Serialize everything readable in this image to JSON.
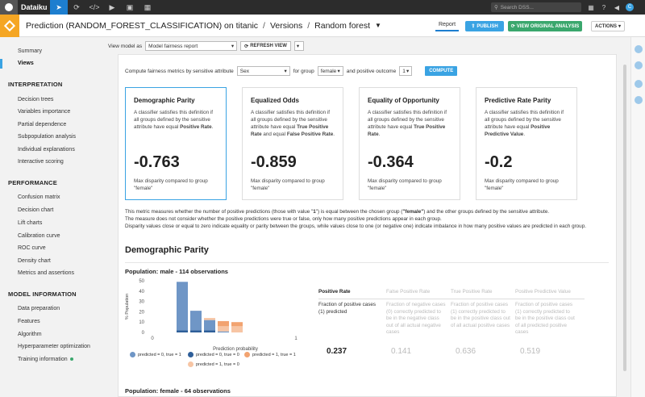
{
  "topbar": {
    "brand": "Dataiku",
    "search_placeholder": "Search DSS...",
    "nav_icons": [
      "flow-icon",
      "jobs-icon",
      "code-icon",
      "run-icon",
      "dashboard-icon",
      "apps-icon"
    ]
  },
  "titlebar": {
    "crumb_1": "Prediction (RANDOM_FOREST_CLASSIFICATION) on titanic",
    "crumb_2": "Versions",
    "crumb_3": "Random forest",
    "tab_report": "Report",
    "publish": "PUBLISH",
    "view_original": "VIEW ORIGINAL ANALYSIS",
    "actions": "ACTIONS"
  },
  "sidebar": {
    "top_items": [
      {
        "label": "Summary"
      },
      {
        "label": "Views"
      }
    ],
    "sections": [
      {
        "title": "INTERPRETATION",
        "items": [
          "Decision trees",
          "Variables importance",
          "Partial dependence",
          "Subpopulation analysis",
          "Individual explanations",
          "Interactive scoring"
        ]
      },
      {
        "title": "PERFORMANCE",
        "items": [
          "Confusion matrix",
          "Decision chart",
          "Lift charts",
          "Calibration curve",
          "ROC curve",
          "Density chart",
          "Metrics and assertions"
        ]
      },
      {
        "title": "MODEL INFORMATION",
        "items": [
          "Data preparation",
          "Features",
          "Algorithm",
          "Hyperparameter optimization",
          "Training information"
        ]
      }
    ]
  },
  "view": {
    "label": "View model as",
    "selected": "Model fairness report",
    "refresh": "REFRESH VIEW"
  },
  "fairness": {
    "compute_label": "Compute fairness metrics by sensitive attribute",
    "attribute": "Sex",
    "for_group": "for group",
    "group": "female",
    "and_outcome": "and positive outcome",
    "outcome": "1",
    "compute": "COMPUTE"
  },
  "cards": [
    {
      "title": "Demographic Parity",
      "desc_pre": "A classifier satisfies this definition if all groups defined by the sensitive attribute have equal ",
      "desc_bold": "Positive Rate",
      "desc_post": ".",
      "value": "-0.763",
      "note": "Max disparity compared to group \"female\""
    },
    {
      "title": "Equalized Odds",
      "desc_pre": "A classifier satisfies this definition if all groups defined by the sensitive attribute have equal ",
      "desc_bold": "True Positive Rate",
      "desc_mid": " and equal ",
      "desc_bold2": "False Positive Rate",
      "desc_post": ".",
      "value": "-0.859",
      "note": "Max disparity compared to group \"female\""
    },
    {
      "title": "Equality of Opportunity",
      "desc_pre": "A classifier satisfies this definition if all groups defined by the sensitive attribute have equal ",
      "desc_bold": "True Positive Rate",
      "desc_post": ".",
      "value": "-0.364",
      "note": "Max disparity compared to group \"female\""
    },
    {
      "title": "Predictive Rate Parity",
      "desc_pre": "A classifier satisfies this definition if all groups defined by the sensitive attribute have equal ",
      "desc_bold": "Positive Predictive Value",
      "desc_post": ".",
      "value": "-0.2",
      "note": "Max disparity compared to group \"female\""
    }
  ],
  "description": {
    "line1_pre": "This metric measures whether the number of positive predictions (those with value \"",
    "line1_val": "1",
    "line1_mid": "\") is equal between the chosen group (",
    "line1_grp": "\"female\"",
    "line1_post": ") and the other groups defined by the sensitive attribute.",
    "line2": "The measure does not consider whether the positive predictions were true or false, only how many positive predictions appear in each group.",
    "line3": "Disparity values close or equal to zero indicate equality or parity between the groups, while values close to one (or negative one) indicate imbalance in how many positive values are predicted in each group."
  },
  "section_title": "Demographic Parity",
  "population_male": "Population: male - 114 observations",
  "population_female": "Population: female - 64 observations",
  "metrics_table": {
    "columns": [
      {
        "header": "Positive Rate",
        "desc": "Fraction of positive cases (1) predicted",
        "value": "0.237",
        "active": true
      },
      {
        "header": "False Positive Rate",
        "desc": "Fraction of negative cases (0) correctly predicted to be in the negative class out of all actual negative cases",
        "value": "0.141",
        "active": false
      },
      {
        "header": "True Positive Rate",
        "desc": "Fraction of positive cases (1) correctly predicted to be in the positive class out of all actual positive cases",
        "value": "0.636",
        "active": false
      },
      {
        "header": "Positive Predictive Value",
        "desc": "Fraction of positive cases (1) correctly predicted to be in the positive class out of all predicted positive cases",
        "value": "0.519",
        "active": false
      }
    ]
  },
  "chart_data": {
    "type": "bar",
    "xlabel": "Prediction probability",
    "ylabel": "% Population",
    "ylim": [
      0,
      50
    ],
    "yticks": [
      "0",
      "10",
      "20",
      "30",
      "40",
      "50"
    ],
    "xticks": [
      "0",
      "1"
    ],
    "categories": [
      "0.2",
      "0.3",
      "0.4",
      "0.5",
      "0.6"
    ],
    "series": [
      {
        "name": "predicted = 0, true = 1",
        "color": "#6f96c6",
        "values": [
          47,
          19,
          10,
          1,
          0
        ]
      },
      {
        "name": "predicted = 0, true = 0",
        "color": "#2f5f99",
        "values": [
          2,
          2,
          2,
          0,
          0
        ]
      },
      {
        "name": "predicted = 1, true = 1",
        "color": "#f2a370",
        "values": [
          0,
          0,
          0,
          5,
          4
        ]
      },
      {
        "name": "predicted = 1, true = 0",
        "color": "#f7c5a4",
        "values": [
          0,
          0,
          2,
          5,
          6
        ]
      }
    ],
    "legend": "bottom"
  },
  "colors": {
    "accent": "#3aa3e3",
    "green": "#3aa76d",
    "orange": "#f5a623"
  }
}
